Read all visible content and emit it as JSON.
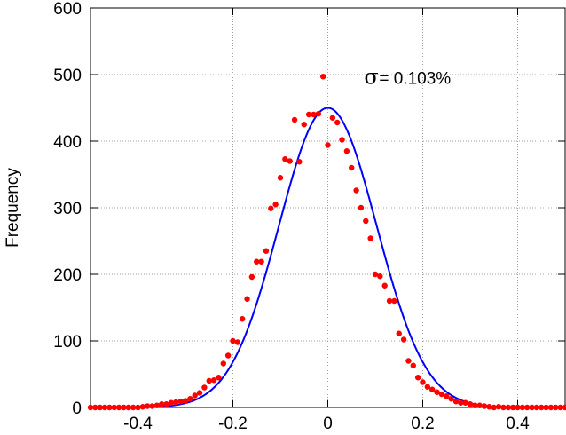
{
  "chart_data": {
    "type": "scatter",
    "title": "",
    "xlabel": "",
    "ylabel": "Frequency",
    "xlim": [
      -0.5,
      0.5
    ],
    "ylim": [
      0,
      600
    ],
    "x_ticks": [
      -0.4,
      -0.2,
      0,
      0.2,
      0.4
    ],
    "x_tick_labels": [
      "-0.4",
      "-0.2",
      "0",
      "0.2",
      "0.4"
    ],
    "y_ticks": [
      0,
      100,
      200,
      300,
      400,
      500,
      600
    ],
    "y_tick_labels": [
      "0",
      "100",
      "200",
      "300",
      "400",
      "500",
      "600"
    ],
    "grid": true,
    "annotation": {
      "symbol": "σ",
      "text": "= 0.103%",
      "x": 0.11,
      "y": 497
    },
    "colors": {
      "points": "#ff0000",
      "fit": "#0000ff",
      "grid": "#a0a0a0"
    },
    "fit": {
      "type": "gaussian",
      "amplitude": 450,
      "mean": 0.0,
      "sigma": 0.103
    },
    "series": [
      {
        "kind": "points",
        "x": [
          -0.5,
          -0.49,
          -0.48,
          -0.47,
          -0.46,
          -0.45,
          -0.44,
          -0.43,
          -0.42,
          -0.41,
          -0.4,
          -0.39,
          -0.38,
          -0.37,
          -0.36,
          -0.35,
          -0.34,
          -0.33,
          -0.32,
          -0.31,
          -0.3,
          -0.29,
          -0.28,
          -0.27,
          -0.26,
          -0.25,
          -0.24,
          -0.23,
          -0.22,
          -0.21,
          -0.2,
          -0.19,
          -0.18,
          -0.17,
          -0.16,
          -0.15,
          -0.14,
          -0.13,
          -0.12,
          -0.11,
          -0.1,
          -0.09,
          -0.08,
          -0.07,
          -0.06,
          -0.05,
          -0.04,
          -0.03,
          -0.02,
          -0.01,
          0.0,
          0.01,
          0.02,
          0.03,
          0.04,
          0.05,
          0.06,
          0.07,
          0.08,
          0.09,
          0.1,
          0.11,
          0.12,
          0.13,
          0.14,
          0.15,
          0.16,
          0.17,
          0.18,
          0.19,
          0.2,
          0.21,
          0.22,
          0.23,
          0.24,
          0.25,
          0.26,
          0.27,
          0.28,
          0.29,
          0.3,
          0.31,
          0.32,
          0.33,
          0.34,
          0.35,
          0.36,
          0.37,
          0.38,
          0.39,
          0.4,
          0.41,
          0.42,
          0.43,
          0.44,
          0.45,
          0.46,
          0.47,
          0.48,
          0.49,
          0.5
        ],
        "y": [
          0,
          0,
          0,
          0,
          0,
          0,
          0,
          0,
          0,
          0,
          0,
          1,
          2,
          2,
          3,
          5,
          5,
          7,
          8,
          9,
          10,
          13,
          18,
          22,
          30,
          40,
          41,
          45,
          66,
          78,
          100,
          98,
          133,
          163,
          196,
          219,
          219,
          235,
          299,
          305,
          345,
          373,
          370,
          432,
          369,
          425,
          440,
          440,
          441,
          497,
          394,
          435,
          428,
          402,
          385,
          360,
          326,
          300,
          280,
          254,
          200,
          197,
          183,
          160,
          160,
          111,
          102,
          70,
          63,
          45,
          38,
          31,
          27,
          23,
          20,
          17,
          13,
          9,
          7,
          7,
          5,
          3,
          3,
          2,
          1,
          0,
          1,
          0,
          0,
          0,
          0,
          0,
          0,
          0,
          0,
          0,
          0,
          0,
          0,
          0,
          0
        ]
      }
    ]
  }
}
